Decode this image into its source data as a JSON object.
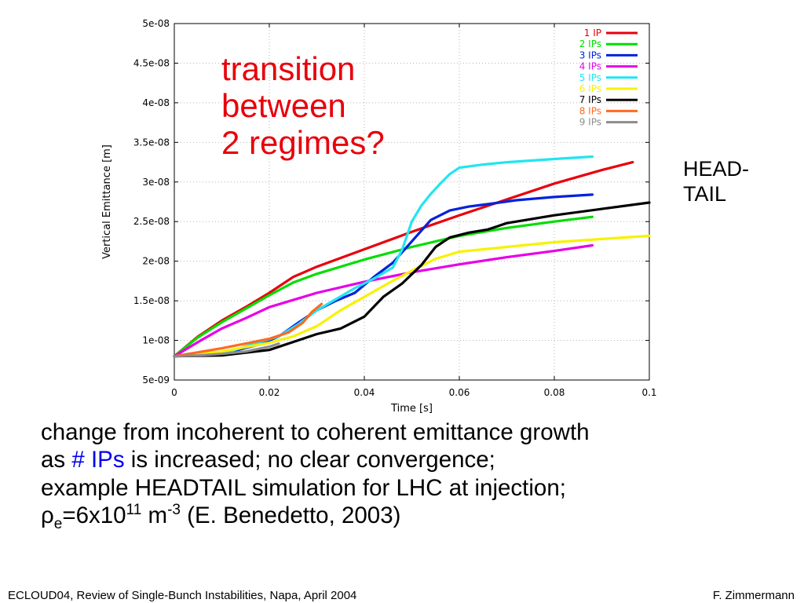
{
  "annotation": {
    "line1": "transition",
    "line2": "between",
    "line3": "2 regimes?"
  },
  "side_label": {
    "line1": "HEAD-",
    "line2": "TAIL"
  },
  "body": {
    "line1": "change from incoherent to coherent emittance growth",
    "line2_a": "as ",
    "line2_b": "# IPs",
    "line2_c": " is increased; no clear convergence;",
    "line3": "example HEADTAIL simulation for LHC at injection;",
    "line4_rho": "ρ",
    "line4_sub": "e",
    "line4_a": "=6x10",
    "line4_sup1": "11",
    "line4_b": " m",
    "line4_sup2": "-3",
    "line4_c": " (E. Benedetto, 2003)"
  },
  "footer": {
    "left": "ECLOUD04, Review of Single-Bunch Instabilities, Napa, April 2004",
    "right": "F. Zimmermann"
  },
  "colors": {
    "accent_red": "#e8000b",
    "highlight_blue": "#0000ee"
  },
  "chart_data": {
    "type": "line",
    "title": "",
    "xlabel": "Time [s]",
    "ylabel": "Vertical Emittance [m]",
    "xlim": [
      0,
      0.1
    ],
    "ylim": [
      5e-09,
      5e-08
    ],
    "grid": true,
    "legend_position": "top-right",
    "x_ticks": [
      0,
      0.02,
      0.04,
      0.06,
      0.08,
      0.1
    ],
    "x_tick_labels": [
      "0",
      "0.02",
      "0.04",
      "0.06",
      "0.08",
      "0.1"
    ],
    "y_ticks": [
      5e-09,
      1e-08,
      1.5e-08,
      2e-08,
      2.5e-08,
      3e-08,
      3.5e-08,
      4e-08,
      4.5e-08,
      5e-08
    ],
    "y_tick_labels": [
      "5e-09",
      "1e-08",
      "1.5e-08",
      "2e-08",
      "2.5e-08",
      "3e-08",
      "3.5e-08",
      "4e-08",
      "4.5e-08",
      "5e-08"
    ],
    "series": [
      {
        "name": "1 IP",
        "color": "#e8000b",
        "x": [
          0,
          0.005,
          0.01,
          0.015,
          0.02,
          0.025,
          0.03,
          0.04,
          0.05,
          0.06,
          0.07,
          0.08,
          0.09,
          0.0965
        ],
        "y": [
          8e-09,
          1.05e-08,
          1.25e-08,
          1.42e-08,
          1.6e-08,
          1.8e-08,
          1.93e-08,
          2.15e-08,
          2.37e-08,
          2.58e-08,
          2.78e-08,
          2.98e-08,
          3.15e-08,
          3.25e-08
        ]
      },
      {
        "name": "2 IPs",
        "color": "#00dd00",
        "x": [
          0,
          0.005,
          0.01,
          0.015,
          0.02,
          0.025,
          0.03,
          0.04,
          0.05,
          0.06,
          0.07,
          0.08,
          0.088
        ],
        "y": [
          8e-09,
          1.04e-08,
          1.23e-08,
          1.4e-08,
          1.57e-08,
          1.73e-08,
          1.84e-08,
          2.02e-08,
          2.18e-08,
          2.32e-08,
          2.42e-08,
          2.5e-08,
          2.56e-08
        ]
      },
      {
        "name": "3 IPs",
        "color": "#0022dd",
        "x": [
          0,
          0.01,
          0.018,
          0.022,
          0.026,
          0.03,
          0.034,
          0.038,
          0.042,
          0.046,
          0.05,
          0.054,
          0.058,
          0.062,
          0.066,
          0.072,
          0.08,
          0.088
        ],
        "y": [
          8e-09,
          8.3e-09,
          9.5e-09,
          1.05e-08,
          1.22e-08,
          1.38e-08,
          1.5e-08,
          1.6e-08,
          1.8e-08,
          1.98e-08,
          2.25e-08,
          2.52e-08,
          2.64e-08,
          2.69e-08,
          2.72e-08,
          2.77e-08,
          2.81e-08,
          2.84e-08
        ]
      },
      {
        "name": "4 IPs",
        "color": "#e600e6",
        "x": [
          0,
          0.005,
          0.01,
          0.015,
          0.02,
          0.03,
          0.04,
          0.05,
          0.06,
          0.07,
          0.08,
          0.088
        ],
        "y": [
          8e-09,
          9.8e-09,
          1.15e-08,
          1.28e-08,
          1.42e-08,
          1.6e-08,
          1.74e-08,
          1.86e-08,
          1.96e-08,
          2.05e-08,
          2.13e-08,
          2.2e-08
        ]
      },
      {
        "name": "5 IPs",
        "color": "#22e5f0",
        "x": [
          0,
          0.01,
          0.018,
          0.022,
          0.026,
          0.03,
          0.034,
          0.038,
          0.042,
          0.046,
          0.048,
          0.05,
          0.052,
          0.054,
          0.056,
          0.058,
          0.06,
          0.065,
          0.07,
          0.08,
          0.088
        ],
        "y": [
          8e-09,
          8.3e-09,
          9.8e-09,
          1.05e-08,
          1.2e-08,
          1.38e-08,
          1.52e-08,
          1.66e-08,
          1.78e-08,
          1.92e-08,
          2.15e-08,
          2.5e-08,
          2.7e-08,
          2.85e-08,
          2.98e-08,
          3.1e-08,
          3.18e-08,
          3.22e-08,
          3.25e-08,
          3.29e-08,
          3.32e-08
        ]
      },
      {
        "name": "6 IPs",
        "color": "#f7f200",
        "x": [
          0,
          0.01,
          0.02,
          0.025,
          0.03,
          0.035,
          0.04,
          0.045,
          0.05,
          0.055,
          0.06,
          0.07,
          0.08,
          0.09,
          0.1
        ],
        "y": [
          8e-09,
          8.6e-09,
          9.7e-09,
          1.05e-08,
          1.18e-08,
          1.38e-08,
          1.55e-08,
          1.72e-08,
          1.88e-08,
          2.03e-08,
          2.12e-08,
          2.18e-08,
          2.24e-08,
          2.28e-08,
          2.32e-08
        ]
      },
      {
        "name": "7 IPs",
        "color": "#000000",
        "x": [
          0,
          0.01,
          0.02,
          0.025,
          0.03,
          0.035,
          0.04,
          0.044,
          0.048,
          0.052,
          0.055,
          0.058,
          0.062,
          0.066,
          0.07,
          0.08,
          0.09,
          0.1
        ],
        "y": [
          8e-09,
          8.1e-09,
          8.8e-09,
          9.8e-09,
          1.08e-08,
          1.15e-08,
          1.3e-08,
          1.55e-08,
          1.72e-08,
          1.95e-08,
          2.18e-08,
          2.3e-08,
          2.36e-08,
          2.4e-08,
          2.48e-08,
          2.58e-08,
          2.66e-08,
          2.74e-08
        ]
      },
      {
        "name": "8 IPs",
        "color": "#ff6a1f",
        "x": [
          0,
          0.005,
          0.01,
          0.015,
          0.02,
          0.024,
          0.027,
          0.029,
          0.031
        ],
        "y": [
          8e-09,
          8.5e-09,
          9e-09,
          9.6e-09,
          1.02e-08,
          1.1e-08,
          1.22e-08,
          1.36e-08,
          1.46e-08
        ]
      },
      {
        "name": "9 IPs",
        "color": "#8c8c8c",
        "x": [
          0,
          0.005,
          0.01,
          0.015,
          0.02,
          0.022
        ],
        "y": [
          8e-09,
          8.1e-09,
          8.3e-09,
          8.6e-09,
          9.2e-09,
          9.6e-09
        ]
      }
    ]
  }
}
